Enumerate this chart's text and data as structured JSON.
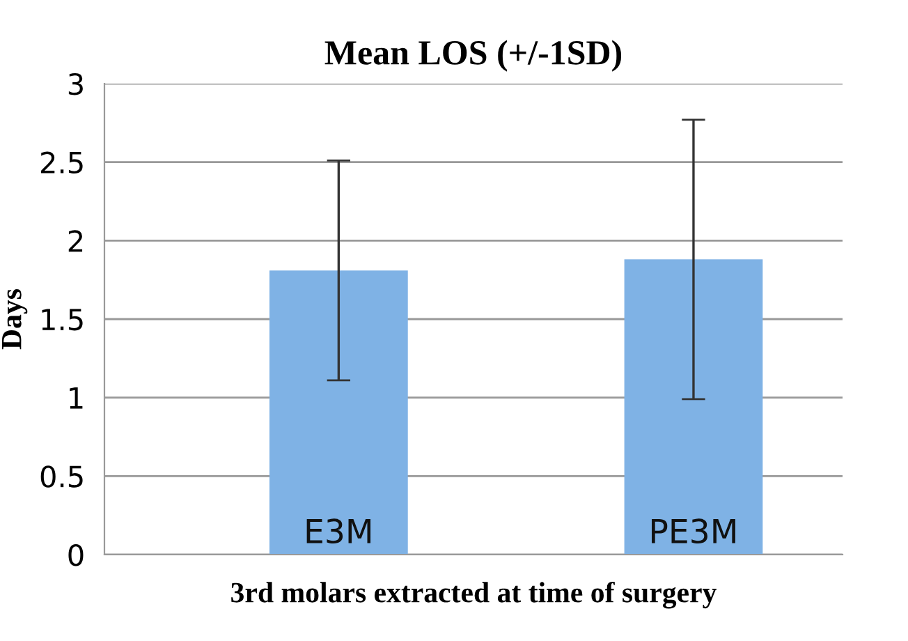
{
  "chart_data": {
    "type": "bar",
    "title": "Mean LOS (+/-1SD)",
    "xlabel": "3rd molars extracted at time of surgery",
    "ylabel": "Days",
    "categories": [
      "E3M",
      "PE3M"
    ],
    "values": [
      1.81,
      1.88
    ],
    "errors": [
      0.7,
      0.89
    ],
    "color": "#7fb2e5",
    "ylim": [
      0,
      3
    ],
    "yticks": [
      0,
      0.5,
      1,
      1.5,
      2,
      2.5,
      3
    ],
    "grid": "y"
  }
}
